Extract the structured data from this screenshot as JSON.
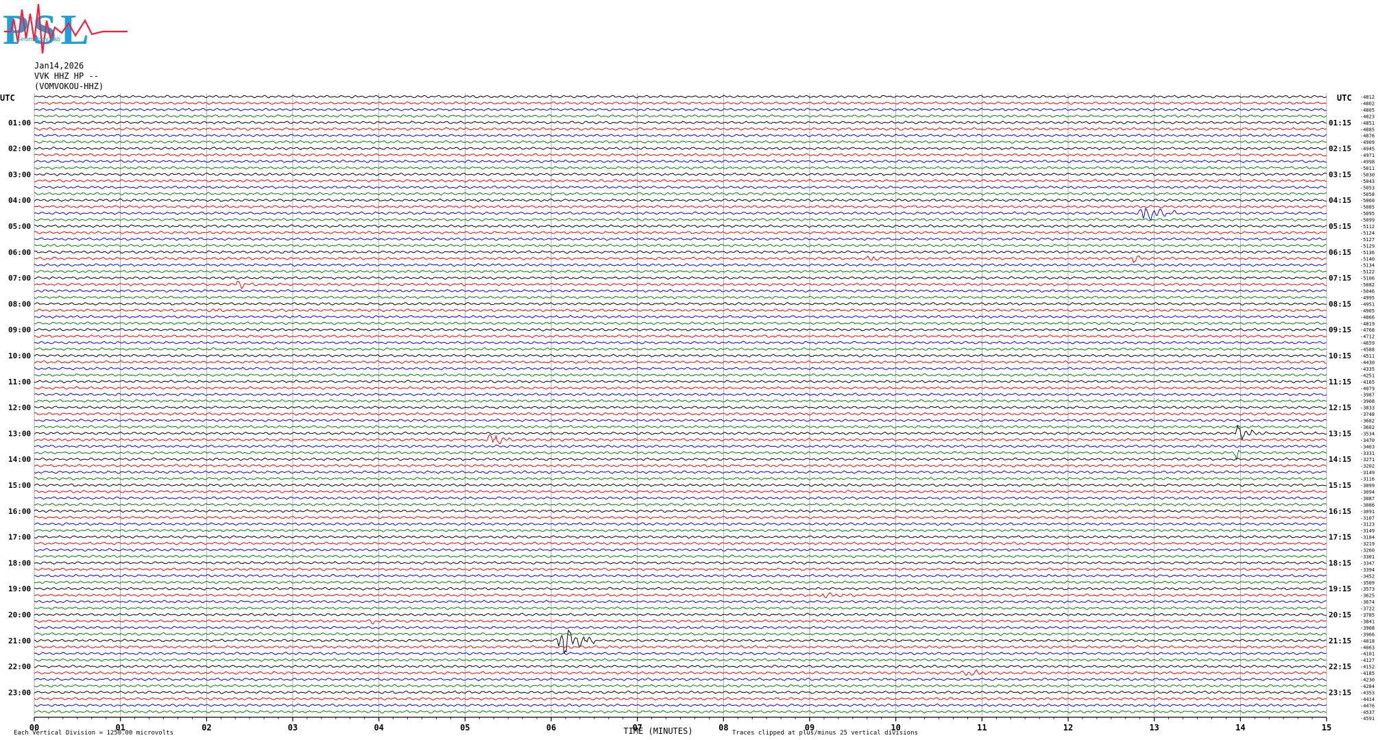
{
  "logo": {
    "mark": "PSL",
    "caption": "Seismology Lab",
    "colors": {
      "letters": "#1fa0d8",
      "wave": "#ff1a3c"
    }
  },
  "header": {
    "date": "Jan14,2026",
    "channel": "VVK HHZ HP --",
    "station": "(VOMVOKOU-HHZ)"
  },
  "axes": {
    "left_label": "UTC",
    "right_label": "UTC",
    "xlabel": "TIME (MINUTES)",
    "x_ticks": [
      "00",
      "01",
      "02",
      "03",
      "04",
      "05",
      "06",
      "07",
      "08",
      "09",
      "10",
      "11",
      "12",
      "13",
      "14",
      "15"
    ],
    "left_hours": [
      "01:00",
      "02:00",
      "03:00",
      "04:00",
      "05:00",
      "06:00",
      "07:00",
      "08:00",
      "09:00",
      "10:00",
      "11:00",
      "12:00",
      "13:00",
      "14:00",
      "15:00",
      "16:00",
      "17:00",
      "18:00",
      "19:00",
      "20:00",
      "21:00",
      "22:00",
      "23:00"
    ],
    "right_hours": [
      "01:15",
      "02:15",
      "03:15",
      "04:15",
      "05:15",
      "06:15",
      "07:15",
      "08:15",
      "09:15",
      "10:15",
      "11:15",
      "12:15",
      "13:15",
      "14:15",
      "15:15",
      "16:15",
      "17:15",
      "18:15",
      "19:15",
      "20:15",
      "21:15",
      "22:15",
      "23:15"
    ]
  },
  "footer": {
    "scale_note": "Each Vertical Division = 1250.00 microvolts",
    "clip_note": "Traces clipped at plus/minus 25 vertical divisions"
  },
  "chart_data": {
    "type": "line",
    "description_of_type": "helicorder",
    "x_unit": "minutes",
    "xlim": [
      0,
      15
    ],
    "lines_per_hour": 4,
    "line_count": 96,
    "color_cycle": [
      "#000000",
      "#ff0000",
      "#0000ff",
      "#008000"
    ],
    "grid": true,
    "right_values": [
      -4812,
      -4802,
      -4805,
      -4823,
      -4851,
      -4885,
      -4876,
      -4909,
      -4945,
      -4971,
      -4998,
      -5011,
      -5030,
      -5043,
      -5053,
      -5058,
      -5060,
      -5085,
      -5095,
      -5099,
      -5112,
      -5124,
      -5127,
      -5129,
      -5136,
      -5140,
      -5134,
      -5122,
      -5106,
      -5082,
      -5046,
      -4995,
      -4951,
      -4905,
      -4866,
      -4819,
      -4768,
      -4712,
      -4659,
      -4588,
      -4511,
      -4430,
      -4335,
      -4251,
      -4165,
      -4079,
      -3987,
      -3908,
      -3833,
      -3748,
      -3682,
      -3602,
      -3534,
      -3470,
      -3403,
      -3331,
      -3271,
      -3202,
      -3149,
      -3116,
      -3099,
      -3094,
      -3087,
      -3086,
      -3091,
      -3107,
      -3123,
      -3149,
      -3184,
      -3219,
      -3260,
      -3301,
      -3347,
      -3394,
      -3452,
      -3509,
      -3573,
      -3625,
      -3674,
      -3722,
      -3785,
      -3841,
      -3908,
      -3966,
      -4018,
      -4063,
      -4101,
      -4127,
      -4152,
      -4185,
      -4230,
      -4284,
      -4353,
      -4414,
      -4476,
      -4537,
      -4591
    ],
    "events": [
      {
        "line": 18,
        "minute": 12.85,
        "amplitude": 2.4,
        "duration": 0.5
      },
      {
        "line": 25,
        "minute": 9.7,
        "amplitude": 1.2,
        "duration": 0.15
      },
      {
        "line": 25,
        "minute": 12.75,
        "amplitude": 1.2,
        "duration": 0.15
      },
      {
        "line": 29,
        "minute": 2.35,
        "amplitude": 1.0,
        "duration": 0.25
      },
      {
        "line": 33,
        "minute": 2.1,
        "amplitude": 0.7,
        "duration": 0.1
      },
      {
        "line": 52,
        "minute": 13.95,
        "amplitude": 2.0,
        "duration": 0.35
      },
      {
        "line": 53,
        "minute": 5.3,
        "amplitude": 2.5,
        "duration": 0.25
      },
      {
        "line": 55,
        "minute": 13.95,
        "amplitude": 1.6,
        "duration": 0.1
      },
      {
        "line": 77,
        "minute": 9.15,
        "amplitude": 0.5,
        "duration": 0.4
      },
      {
        "line": 81,
        "minute": 3.92,
        "amplitude": 0.8,
        "duration": 0.05
      },
      {
        "line": 84,
        "minute": 6.1,
        "amplitude": 5.5,
        "duration": 0.4
      },
      {
        "line": 89,
        "minute": 10.8,
        "amplitude": 0.7,
        "duration": 0.5
      }
    ]
  }
}
